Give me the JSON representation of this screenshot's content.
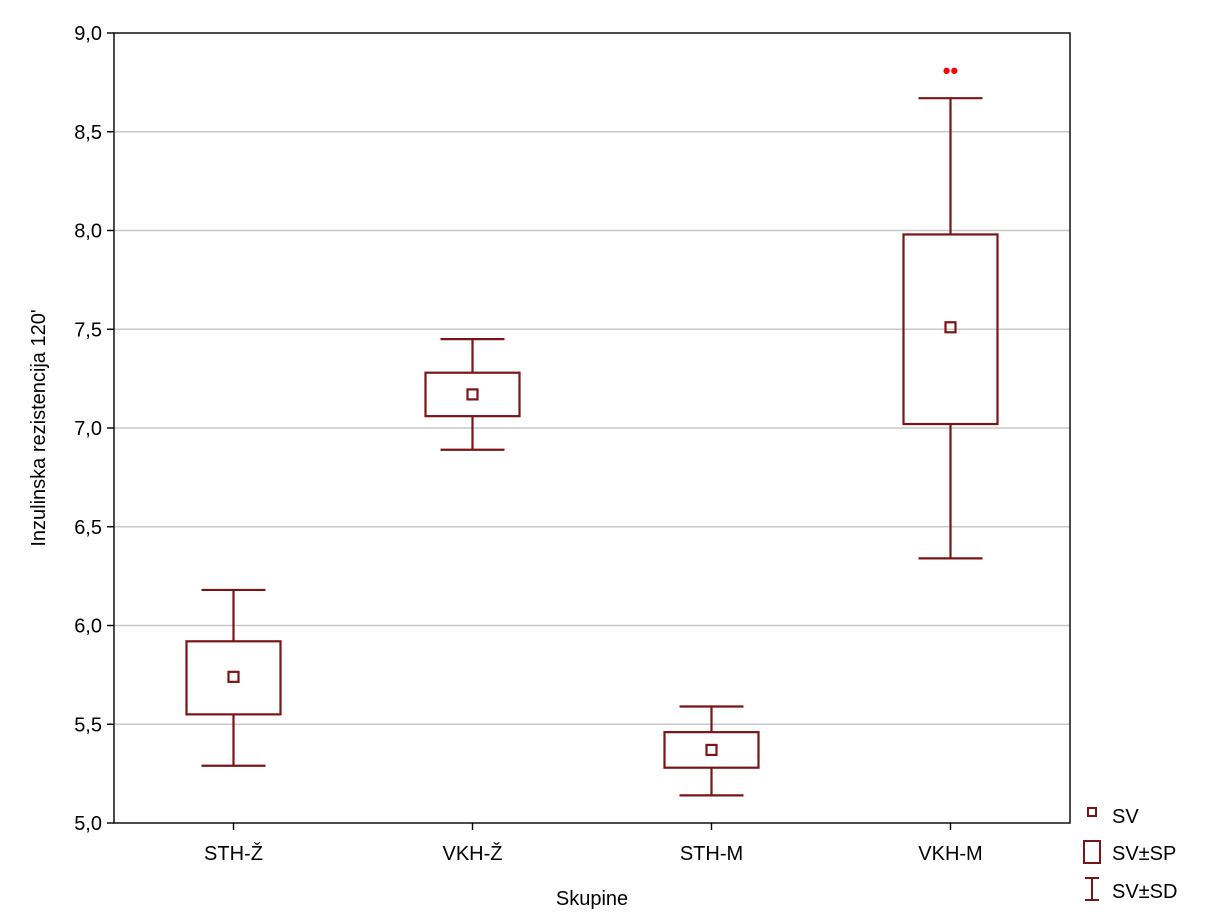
{
  "chart_data": {
    "type": "box",
    "xlabel": "Skupine",
    "ylabel": "Inzulinska rezistencija 120'",
    "ylim": [
      5.0,
      9.0
    ],
    "yticks": [
      "5,0",
      "5,5",
      "6,0",
      "6,5",
      "7,0",
      "7,5",
      "8,0",
      "8,5",
      "9,0"
    ],
    "ytick_values": [
      5.0,
      5.5,
      6.0,
      6.5,
      7.0,
      7.5,
      8.0,
      8.5,
      9.0
    ],
    "grid": "horizontal",
    "legend_position": "bottom-right",
    "categories": [
      "STH-Ž",
      "VKH-Ž",
      "STH-M",
      "VKH-M"
    ],
    "groups": [
      {
        "category": "STH-Ž",
        "mean": 5.74,
        "se_low": 5.55,
        "se_high": 5.92,
        "sd_low": 5.29,
        "sd_high": 6.18
      },
      {
        "category": "VKH-Ž",
        "mean": 7.17,
        "se_low": 7.06,
        "se_high": 7.28,
        "sd_low": 6.89,
        "sd_high": 7.45
      },
      {
        "category": "STH-M",
        "mean": 5.37,
        "se_low": 5.28,
        "se_high": 5.46,
        "sd_low": 5.14,
        "sd_high": 5.59
      },
      {
        "category": "VKH-M",
        "mean": 7.51,
        "se_low": 7.02,
        "se_high": 7.98,
        "sd_low": 6.34,
        "sd_high": 8.67,
        "marker": "••"
      }
    ],
    "legend": [
      {
        "key": "mean",
        "label": "SV"
      },
      {
        "key": "se",
        "label": "SV±SP"
      },
      {
        "key": "sd",
        "label": "SV±SD"
      }
    ],
    "colors": {
      "box": "#7b1416",
      "grid": "#c8c8c8",
      "marker": "#ff0000",
      "plot_bg": "#ffffff",
      "outer_bg": "#ffffff"
    }
  }
}
